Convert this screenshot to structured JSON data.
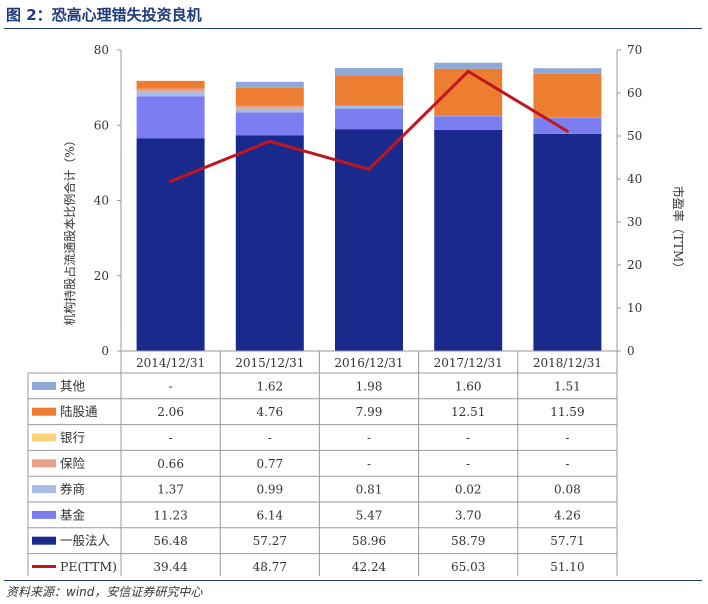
{
  "header": {
    "title": "图 2：恐高心理错失投资良机"
  },
  "footer": {
    "source": "资料来源：wind，安信证券研究中心"
  },
  "chart_data": {
    "type": "bar",
    "stacked": true,
    "categories": [
      "2014/12/31",
      "2015/12/31",
      "2016/12/31",
      "2017/12/31",
      "2018/12/31"
    ],
    "ylabel": "机构持股占流通股本比例合计（%）",
    "y2label": "市盈率（TTM）",
    "ylim": [
      0,
      80
    ],
    "y2lim": [
      0,
      70
    ],
    "yticks": [
      0,
      20,
      40,
      60,
      80
    ],
    "y2ticks": [
      0,
      10,
      20,
      30,
      40,
      50,
      60,
      70
    ],
    "series": [
      {
        "name": "一般法人",
        "color": "#1a2a8c",
        "values": [
          56.48,
          57.27,
          58.96,
          58.79,
          57.71
        ],
        "labels": [
          "56.48",
          "57.27",
          "58.96",
          "58.79",
          "57.71"
        ]
      },
      {
        "name": "基金",
        "color": "#7b7ef0",
        "values": [
          11.23,
          6.14,
          5.47,
          3.7,
          4.26
        ],
        "labels": [
          "11.23",
          "6.14",
          "5.47",
          "3.70",
          "4.26"
        ]
      },
      {
        "name": "券商",
        "color": "#a9bde3",
        "values": [
          1.37,
          0.99,
          0.81,
          0.02,
          0.08
        ],
        "labels": [
          "1.37",
          "0.99",
          "0.81",
          "0.02",
          "0.08"
        ]
      },
      {
        "name": "保险",
        "color": "#e8a088",
        "values": [
          0.66,
          0.77,
          0,
          0,
          0
        ],
        "labels": [
          "0.66",
          "0.77",
          "-",
          "-",
          "-"
        ]
      },
      {
        "name": "银行",
        "color": "#ffd27a",
        "values": [
          0,
          0,
          0,
          0,
          0
        ],
        "labels": [
          "-",
          "-",
          "-",
          "-",
          "-"
        ]
      },
      {
        "name": "陆股通",
        "color": "#ec7d31",
        "values": [
          2.06,
          4.76,
          7.99,
          12.51,
          11.59
        ],
        "labels": [
          "2.06",
          "4.76",
          "7.99",
          "12.51",
          "11.59"
        ]
      },
      {
        "name": "其他",
        "color": "#8ea9d8",
        "values": [
          0,
          1.62,
          1.98,
          1.6,
          1.51
        ],
        "labels": [
          "-",
          "1.62",
          "1.98",
          "1.60",
          "1.51"
        ]
      }
    ],
    "line": {
      "name": "PE(TTM)",
      "color": "#c0161d",
      "axis": "right",
      "values": [
        39.44,
        48.77,
        42.24,
        65.03,
        51.1
      ],
      "labels": [
        "39.44",
        "48.77",
        "42.24",
        "65.03",
        "51.10"
      ]
    },
    "table_order": [
      "其他",
      "陆股通",
      "银行",
      "保险",
      "券商",
      "基金",
      "一般法人",
      "PE(TTM)"
    ]
  }
}
